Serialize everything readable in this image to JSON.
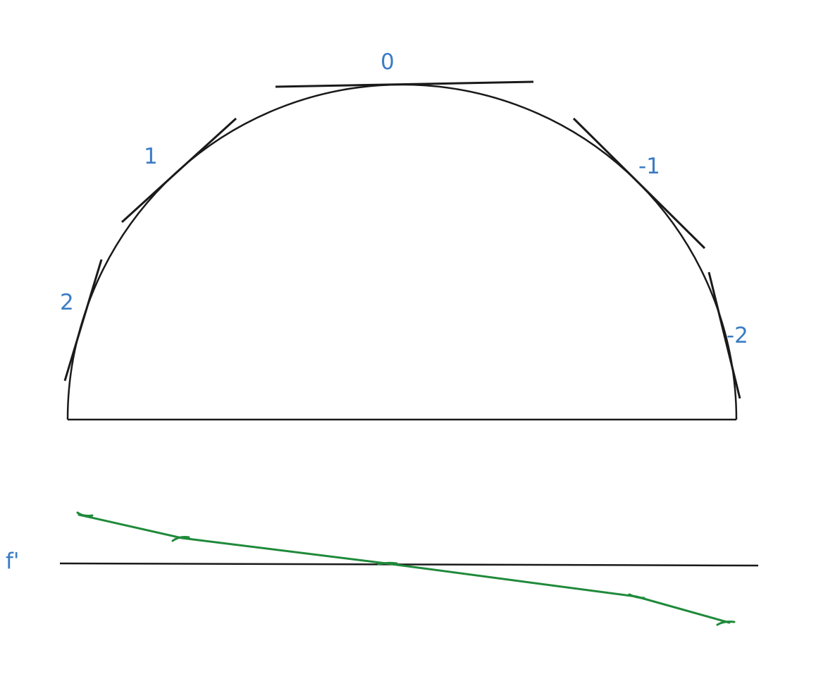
{
  "colors": {
    "label_blue": "#3b7cc4",
    "stroke_black": "#1a1a1a",
    "derivative_green": "#1f8a3a"
  },
  "tangent_labels": [
    "2",
    "1",
    "0",
    "-1",
    "-2"
  ],
  "axis_label": "f'"
}
